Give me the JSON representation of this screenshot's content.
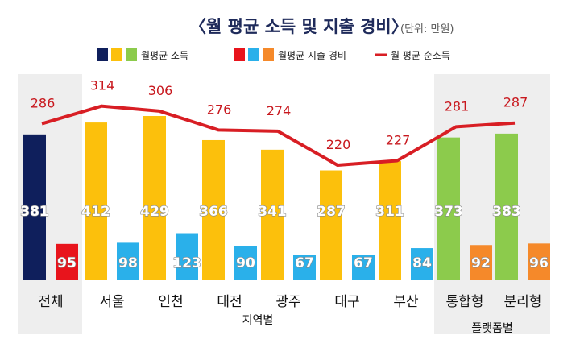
{
  "title": "〈월 평균 소득 및 지출 경비〉",
  "unit": "(단위: 만원)",
  "legend": {
    "income": "월평균 소득",
    "expense": "월평균 지출 경비",
    "net": "월 평균 순소득"
  },
  "colors": {
    "income_total": "#0f1f5c",
    "expense_total": "#e8141c",
    "income_region": "#fcc00c",
    "expense_region": "#2ab0ea",
    "income_platform": "#8ccb4c",
    "expense_platform": "#f5892a",
    "net_line": "#d81e24",
    "panel_bg": "#eeeeee"
  },
  "groups": {
    "region": "지역별",
    "platform": "플랫폼별"
  },
  "chart_data": {
    "type": "bar",
    "categories": [
      "전체",
      "서울",
      "인천",
      "대전",
      "광주",
      "대구",
      "부산",
      "통합형",
      "분리형"
    ],
    "series": [
      {
        "name": "월평균 소득",
        "values": [
          381,
          412,
          429,
          366,
          341,
          287,
          311,
          373,
          383
        ]
      },
      {
        "name": "월평균 지출 경비",
        "values": [
          95,
          98,
          123,
          90,
          67,
          67,
          84,
          92,
          96
        ]
      },
      {
        "name": "월 평균 순소득",
        "type": "line",
        "values": [
          286,
          314,
          306,
          276,
          274,
          220,
          227,
          281,
          287
        ]
      }
    ],
    "ylim": [
      0,
      450
    ]
  }
}
